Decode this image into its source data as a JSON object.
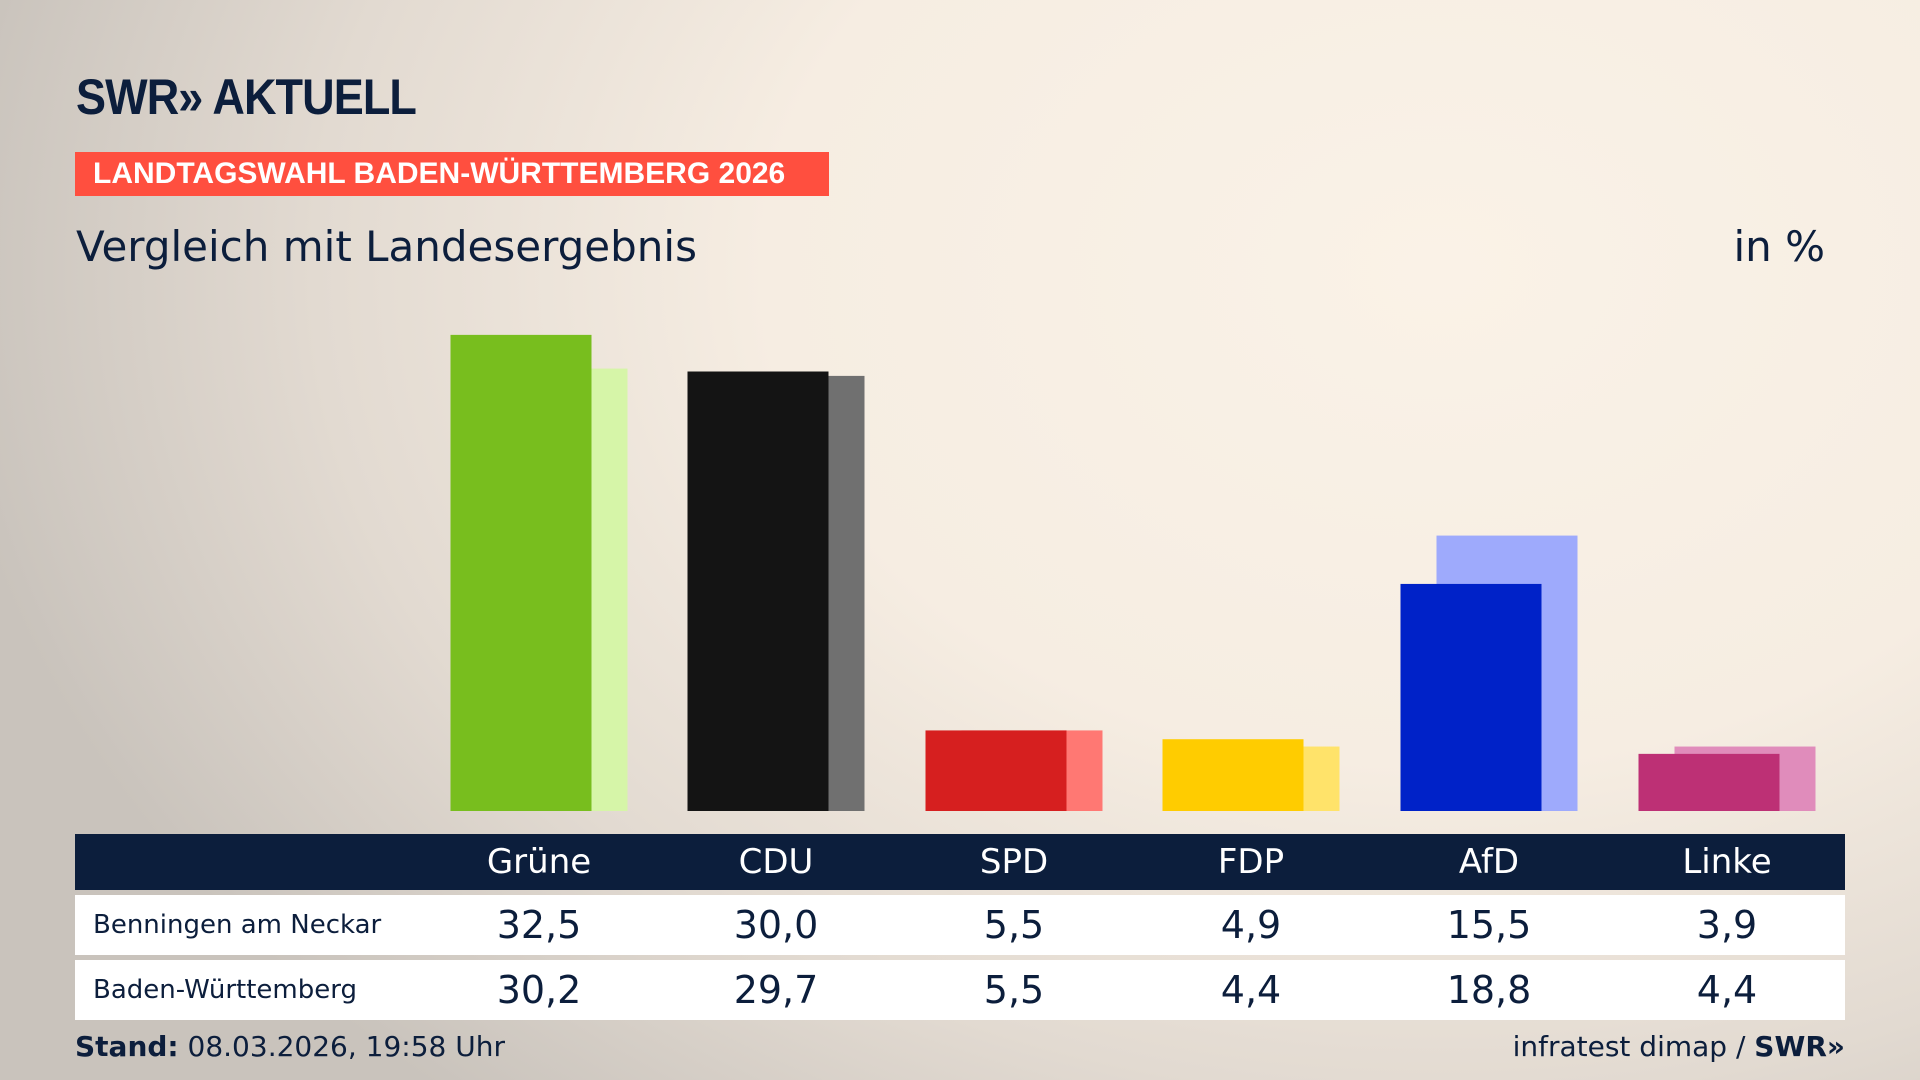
{
  "logo": "SWR» AKTUELL",
  "banner": "LANDTAGSWAHL BADEN-WÜRTTEMBERG 2026",
  "subtitle": "Vergleich mit Landesergebnis",
  "unit": "in %",
  "chart_data": {
    "type": "bar",
    "categories": [
      "Grüne",
      "CDU",
      "SPD",
      "FDP",
      "AfD",
      "Linke"
    ],
    "series": [
      {
        "name": "Benningen am Neckar",
        "values": [
          32.5,
          30.0,
          5.5,
          4.9,
          15.5,
          3.9
        ],
        "colors": [
          "#78be1e",
          "#141414",
          "#d61f1f",
          "#ffcc00",
          "#0022c8",
          "#bd3075"
        ]
      },
      {
        "name": "Baden-Württemberg",
        "values": [
          30.2,
          29.7,
          5.5,
          4.4,
          18.8,
          4.4
        ],
        "colors": [
          "#d6f5a8",
          "#707070",
          "#ff7873",
          "#ffe36a",
          "#9eaafc",
          "#e08cbb"
        ]
      }
    ],
    "ylim": [
      0,
      34
    ],
    "grid": false
  },
  "table": {
    "headers": [
      "Grüne",
      "CDU",
      "SPD",
      "FDP",
      "AfD",
      "Linke"
    ],
    "rows": [
      {
        "label": "Benningen am Neckar",
        "values": [
          "32,5",
          "30,0",
          "5,5",
          "4,9",
          "15,5",
          "3,9"
        ]
      },
      {
        "label": "Baden-Württemberg",
        "values": [
          "30,2",
          "29,7",
          "5,5",
          "4,4",
          "18,8",
          "4,4"
        ]
      }
    ]
  },
  "footer": {
    "stand_label": "Stand:",
    "stand_value": "08.03.2026, 19:58 Uhr",
    "source": "infratest dimap / ",
    "source_logo": "SWR»"
  },
  "colors": {
    "navy": "#0c1e3c",
    "banner": "#ff4f3f"
  }
}
